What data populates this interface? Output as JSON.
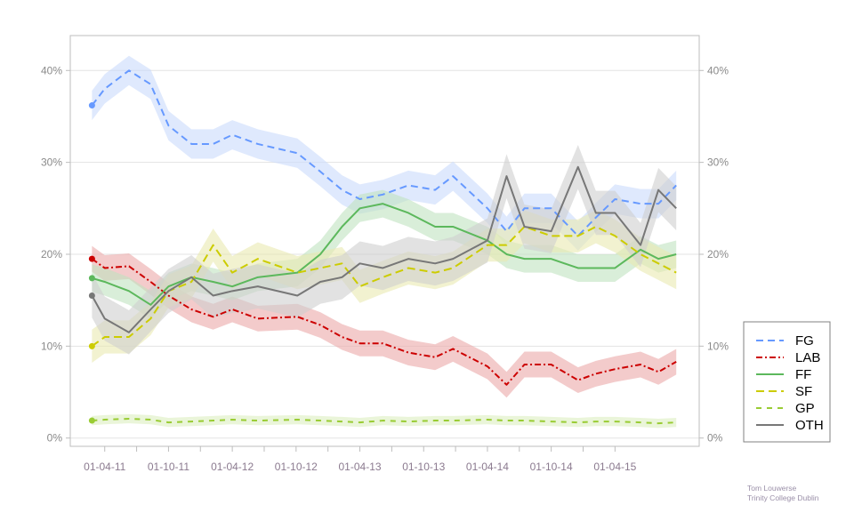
{
  "chart_data": {
    "type": "line",
    "title": "",
    "xlabel": "",
    "ylabel": "",
    "x_ticks": [
      {
        "x": 2011.25,
        "label": "01-04-11"
      },
      {
        "x": 2011.75,
        "label": "01-10-11"
      },
      {
        "x": 2012.25,
        "label": "01-04-12"
      },
      {
        "x": 2012.75,
        "label": "01-10-12"
      },
      {
        "x": 2013.25,
        "label": "01-04-13"
      },
      {
        "x": 2013.75,
        "label": "01-10-13"
      },
      {
        "x": 2014.25,
        "label": "01-04-14"
      },
      {
        "x": 2014.75,
        "label": "01-10-14"
      },
      {
        "x": 2015.25,
        "label": "01-04-15"
      }
    ],
    "y_ticks": [
      {
        "y": 0,
        "label": "0%"
      },
      {
        "y": 10,
        "label": "10%"
      },
      {
        "y": 20,
        "label": "20%"
      },
      {
        "y": 30,
        "label": "30%"
      },
      {
        "y": 40,
        "label": "40%"
      }
    ],
    "xlim": [
      2010.98,
      2015.91
    ],
    "ylim": [
      -0.9,
      43.8
    ],
    "grid": true,
    "legend_position": "right",
    "x": [
      2011.15,
      2011.25,
      2011.44,
      2011.61,
      2011.75,
      2011.93,
      2012.1,
      2012.25,
      2012.45,
      2012.76,
      2012.94,
      2013.11,
      2013.25,
      2013.43,
      2013.63,
      2013.84,
      2013.98,
      2014.25,
      2014.4,
      2014.54,
      2014.75,
      2014.96,
      2015.1,
      2015.25,
      2015.45,
      2015.59,
      2015.73
    ],
    "series": [
      {
        "name": "FG",
        "color": "#6699ff",
        "band": "#c9dafc",
        "dash": "8,5",
        "ci": 1.6,
        "values": [
          36.2,
          38,
          40,
          38.5,
          34,
          32,
          32,
          33,
          32,
          31,
          29,
          27,
          26,
          26.5,
          27.5,
          27,
          28.5,
          25,
          22.5,
          25,
          25,
          22,
          24,
          26,
          25.5,
          25.5,
          27.5
        ]
      },
      {
        "name": "LAB",
        "color": "#cc0000",
        "band": "#eba9a9",
        "dash": "7,3,2,3",
        "ci": 1.4,
        "values": [
          19.5,
          18.5,
          18.7,
          17,
          15.5,
          14,
          13.2,
          14,
          13,
          13.2,
          12.3,
          11,
          10.3,
          10.3,
          9.3,
          8.8,
          9.7,
          7.8,
          5.8,
          8,
          8,
          6.3,
          7,
          7.5,
          8,
          7.2,
          8.3
        ]
      },
      {
        "name": "FF",
        "color": "#5cb85c",
        "band": "#bfe3bf",
        "dash": "",
        "ci": 1.5,
        "values": [
          17.4,
          17,
          16,
          14.5,
          16.5,
          17.5,
          17,
          16.5,
          17.5,
          18,
          20,
          23,
          25,
          25.5,
          24.5,
          23,
          23,
          21.5,
          20,
          19.5,
          19.5,
          18.5,
          18.5,
          18.5,
          20.5,
          19.5,
          20
        ]
      },
      {
        "name": "SF",
        "color": "#cccc00",
        "band": "#eaeab0",
        "dash": "9,5",
        "ci": 1.8,
        "values": [
          10,
          11,
          11,
          13,
          16,
          17,
          21,
          18,
          19.5,
          18,
          18.5,
          19,
          16.5,
          17.5,
          18.5,
          18,
          18.5,
          21,
          21,
          23,
          22,
          22,
          23,
          22,
          20,
          19,
          18
        ]
      },
      {
        "name": "GP",
        "color": "#99cc33",
        "band": "#dcefc0",
        "dash": "6,6",
        "ci": 0.5,
        "values": [
          1.9,
          2.0,
          2.1,
          2.0,
          1.7,
          1.8,
          1.9,
          2.0,
          1.9,
          2.0,
          1.9,
          1.8,
          1.7,
          1.9,
          1.8,
          1.9,
          1.9,
          2.0,
          1.9,
          1.9,
          1.8,
          1.7,
          1.8,
          1.8,
          1.7,
          1.6,
          1.7
        ]
      },
      {
        "name": "OTH",
        "color": "#777777",
        "band": "#cfcfcf",
        "dash": "",
        "ci": 2.4,
        "values": [
          15.5,
          13,
          11.5,
          14,
          16,
          17.5,
          15.5,
          16,
          16.5,
          15.5,
          17,
          17.5,
          19,
          18.5,
          19.5,
          19,
          19.5,
          21.5,
          28.5,
          23,
          22.5,
          29.5,
          24.5,
          24.5,
          21,
          27,
          25
        ]
      }
    ]
  },
  "credits": {
    "author": "Tom Louwerse",
    "institution": "Trinity College Dublin"
  }
}
